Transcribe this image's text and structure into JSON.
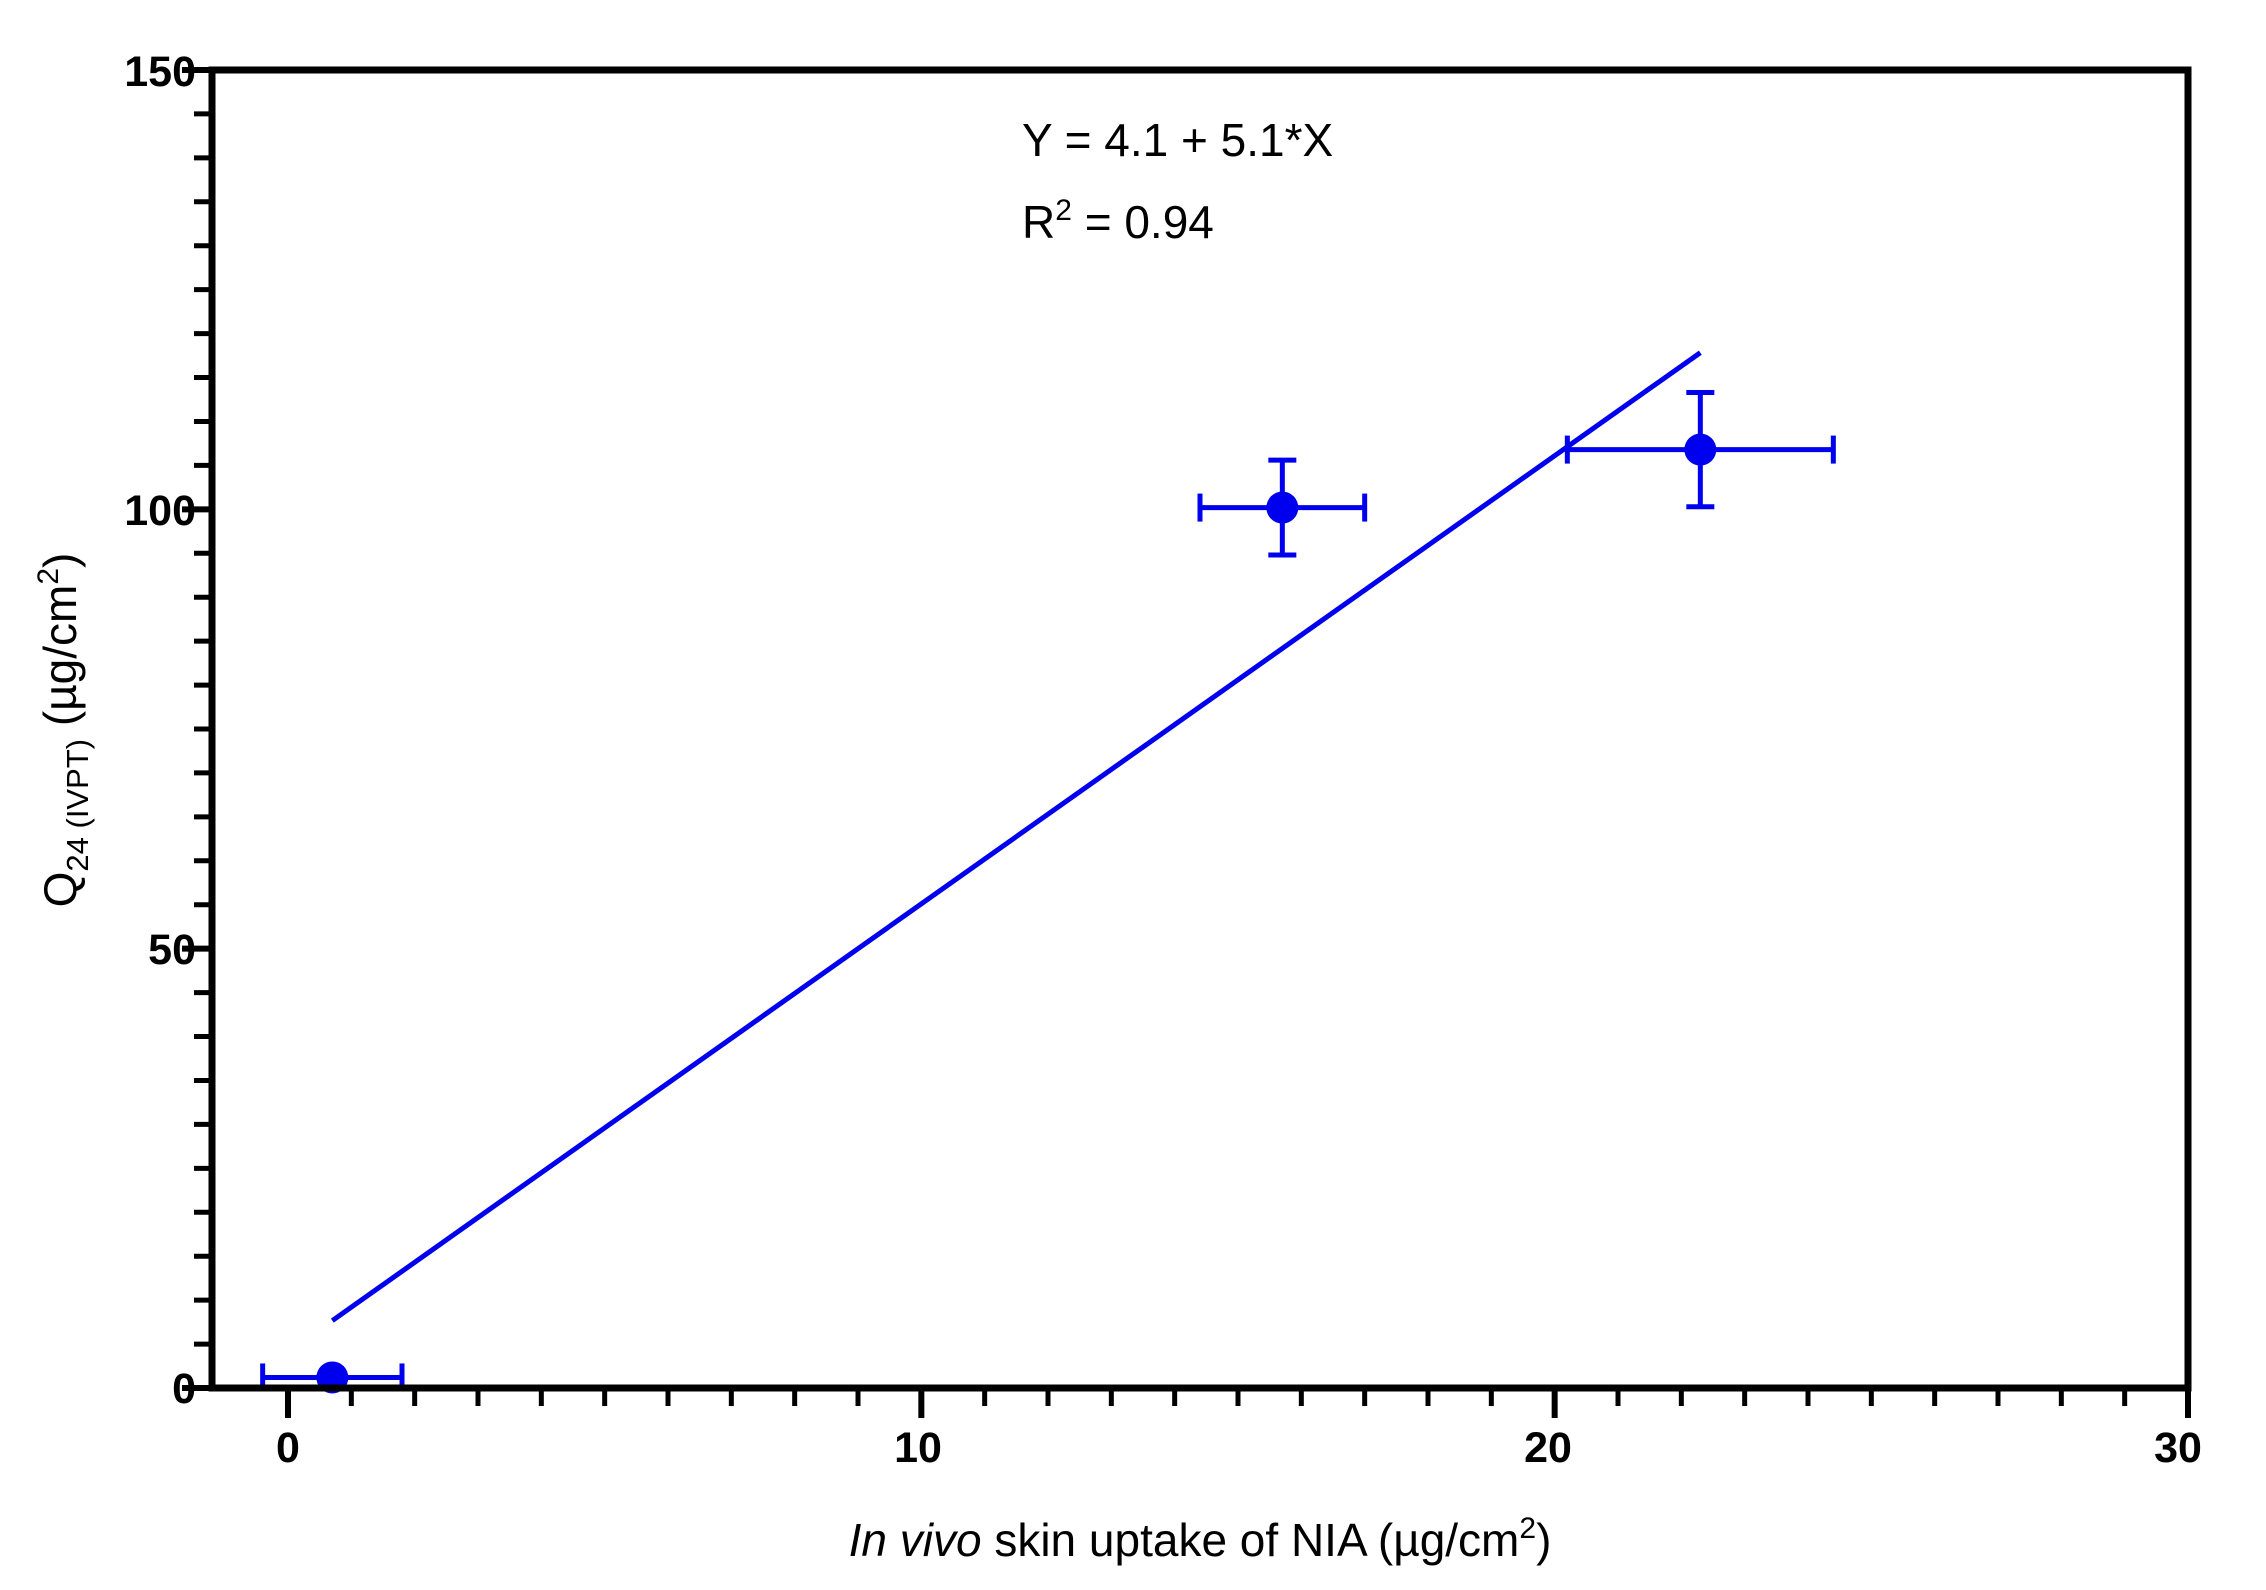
{
  "chart_data": {
    "type": "scatter",
    "x": [
      0.7,
      15.7,
      22.3
    ],
    "y": [
      1.2,
      100.2,
      106.8
    ],
    "x_err": [
      1.1,
      1.3,
      2.1
    ],
    "y_err": [
      0.6,
      5.4,
      6.5
    ],
    "fit_line": {
      "x_start": 0.7,
      "x_end": 22.3
    },
    "xlim": [
      -1.2,
      30
    ],
    "ylim": [
      0,
      150
    ],
    "x_ticks": [
      "0",
      "10",
      "20",
      "30"
    ],
    "y_ticks": [
      "0",
      "50",
      "100",
      "150"
    ],
    "xlabel": {
      "italic": "In vivo",
      "text": " skin uptake of NIA (µg/cm",
      "sup": "2",
      "close": ")"
    },
    "ylabel": {
      "main": "Q",
      "sub": "24 (IVPT)",
      "text": " (µg/cm",
      "sup": "2",
      "close": ")"
    },
    "annotations": {
      "equation": "Y = 4.1 + 5.1*X",
      "r2_label": "R",
      "r2_sup": "2",
      "r2_value": " = 0.94"
    },
    "colors": {
      "series": "#0000ee",
      "axis": "#000000"
    },
    "grid": false,
    "legend": "none"
  }
}
